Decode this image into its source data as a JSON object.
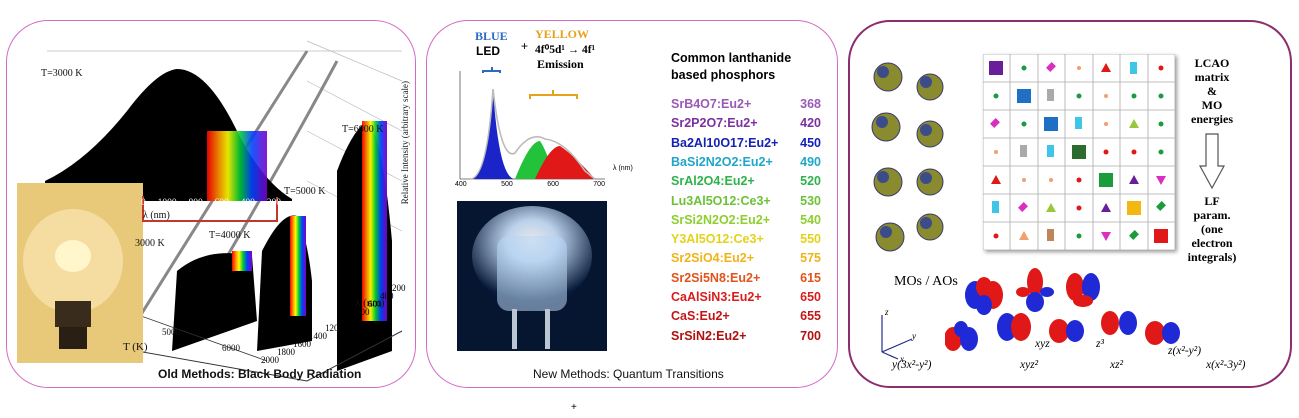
{
  "panel1": {
    "caption": "Old Methods: Black Body Radiation",
    "curve_labels": [
      "T=3000 K",
      "T=6000 K",
      "T=5000 K",
      "T=4000 K",
      "3000 K"
    ],
    "x_ticks": [
      "0",
      "1000",
      "800",
      "600",
      "400",
      "200"
    ],
    "lambda_front": "λ (nm)",
    "lambda_axis": "λ (nm)",
    "T_axis": "T (K)",
    "y_axis": "Relative Intensity (arbitrary scale)",
    "lambda_ticks": [
      "200",
      "400",
      "600",
      "800",
      "1000",
      "1200",
      "1400",
      "1600",
      "1800",
      "2000"
    ],
    "T_ticks": [
      "5000",
      "6000"
    ]
  },
  "panel2": {
    "caption": "New Methods: Quantum Transitions",
    "blue_label": "BLUE",
    "led_label": "LED",
    "plus": "+",
    "yellow_label": "YELLOW",
    "transition": "4f⁰5d¹ → 4f¹",
    "emission": "Emission",
    "heading1": "Common lanthanide",
    "heading2": "based phosphors",
    "spectrum_ticks": [
      "400",
      "500",
      "600",
      "700"
    ],
    "spectrum_xlabel": "λ (nm)",
    "phosphors": [
      {
        "formula": "SrB4O7:Eu2+",
        "value": "368",
        "color": "#9b59b6"
      },
      {
        "formula": "Sr2P2O7:Eu2+",
        "value": "420",
        "color": "#7b2fa0"
      },
      {
        "formula": "Ba2Al10O17:Eu2+",
        "value": "450",
        "color": "#1520b8"
      },
      {
        "formula": "BaSi2N2O2:Eu2+",
        "value": "490",
        "color": "#1fa6c9"
      },
      {
        "formula": "SrAl2O4:Eu2+",
        "value": "520",
        "color": "#2fb24a"
      },
      {
        "formula": "Lu3Al5O12:Ce3+",
        "value": "530",
        "color": "#6cc236"
      },
      {
        "formula": "SrSi2N2O2:Eu2+",
        "value": "540",
        "color": "#8ccf2e"
      },
      {
        "formula": "Y3Al5O12:Ce3+",
        "value": "550",
        "color": "#e4d21a"
      },
      {
        "formula": "Sr2SiO4:Eu2+",
        "value": "575",
        "color": "#f0b419"
      },
      {
        "formula": "Sr2Si5N8:Eu2+",
        "value": "615",
        "color": "#e0531d"
      },
      {
        "formula": "CaAlSiN3:Eu2+",
        "value": "650",
        "color": "#d81d1d"
      },
      {
        "formula": "CaS:Eu2+",
        "value": "655",
        "color": "#c21616"
      },
      {
        "formula": "SrSiN2:Eu2+",
        "value": "700",
        "color": "#b01010"
      }
    ]
  },
  "panel3": {
    "lcao_lines": [
      "LCAO",
      "matrix",
      "&",
      "MO",
      "energies"
    ],
    "lf_lines": [
      "LF",
      "param.",
      "(one",
      "electron",
      "integrals)"
    ],
    "mos_aos": "MOs / AOs",
    "axis_x": "x",
    "axis_y": "y",
    "axis_z": "z",
    "orbital_labels": [
      "xyz",
      "z³",
      "z(x²-y²)",
      "y(3x²-y²)",
      "xyz²",
      "xz²",
      "x(x²-3y²)"
    ]
  },
  "stray_mark": "+"
}
